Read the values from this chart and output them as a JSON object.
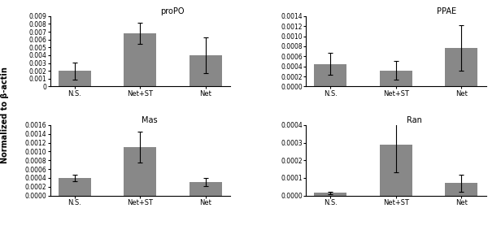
{
  "proPO": {
    "title": "proPO",
    "categories": [
      "N.S.",
      "Net+ST",
      "Net"
    ],
    "values": [
      0.002,
      0.0068,
      0.004
    ],
    "errors": [
      0.0011,
      0.0014,
      0.0023
    ],
    "ylim": [
      0,
      0.009
    ],
    "yticks": [
      0,
      0.001,
      0.002,
      0.003,
      0.004,
      0.005,
      0.006,
      0.007,
      0.008,
      0.009
    ]
  },
  "PPAE": {
    "title": "PPAE",
    "categories": [
      "N.S.",
      "Net+ST",
      "Net"
    ],
    "values": [
      0.00045,
      0.00032,
      0.00077
    ],
    "errors": [
      0.00022,
      0.00018,
      0.00045
    ],
    "ylim": [
      0.0,
      0.0014
    ],
    "yticks": [
      0.0,
      0.0002,
      0.0004,
      0.0006,
      0.0008,
      0.001,
      0.0012,
      0.0014
    ]
  },
  "Mas": {
    "title": "Mas",
    "categories": [
      "N.S.",
      "Net+ST",
      "Net"
    ],
    "values": [
      0.0004,
      0.0011,
      0.0003
    ],
    "errors": [
      8e-05,
      0.00035,
      9e-05
    ],
    "ylim": [
      0.0,
      0.0016
    ],
    "yticks": [
      0.0,
      0.0002,
      0.0004,
      0.0006,
      0.0008,
      0.001,
      0.0012,
      0.0014,
      0.0016
    ]
  },
  "Ran": {
    "title": "Ran",
    "categories": [
      "N.S.",
      "Net+ST",
      "Net"
    ],
    "values": [
      1.5e-05,
      0.00029,
      7e-05
    ],
    "errors": [
      8e-06,
      0.00016,
      5e-05
    ],
    "ylim": [
      0.0,
      0.0004
    ],
    "yticks": [
      0.0,
      0.0001,
      0.0002,
      0.0003,
      0.0004
    ]
  },
  "bar_color": "#888888",
  "bar_width": 0.5,
  "ylabel": "Normalized to β-actin"
}
